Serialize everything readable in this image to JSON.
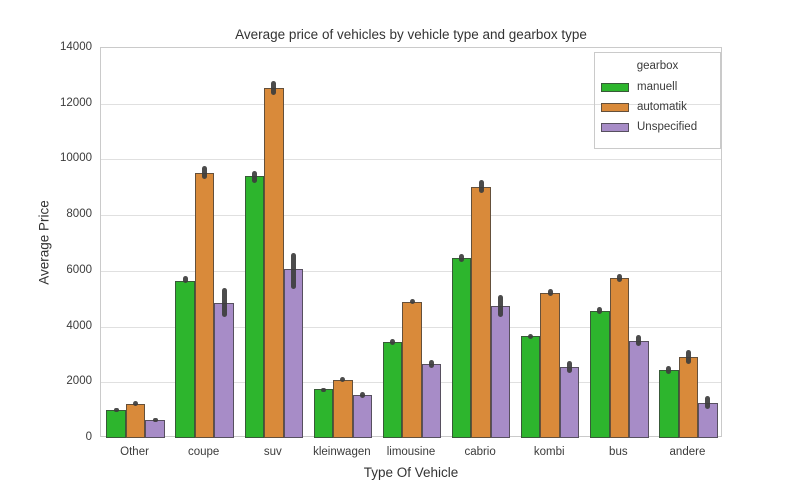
{
  "title": "Average price of vehicles by vehicle type and gearbox type",
  "xlabel": "Type Of Vehicle",
  "ylabel": "Average Price",
  "legend": {
    "title": "gearbox",
    "items": [
      {
        "label": "manuell",
        "color": "#2db52d"
      },
      {
        "label": "automatik",
        "color": "#d98a3a"
      },
      {
        "label": "Unspecified",
        "color": "#a78cc7"
      }
    ]
  },
  "colors": {
    "manuell": "#2db52d",
    "automatik": "#d98a3a",
    "unspecified": "#a78cc7",
    "errorbar": "#3d3d3d",
    "grid": "#e0e0e0",
    "spine": "#cacaca",
    "text": "#333333"
  },
  "y_ticks": [
    0,
    2000,
    4000,
    6000,
    8000,
    10000,
    12000,
    14000
  ],
  "chart_data": {
    "type": "bar",
    "title": "Average price of vehicles by vehicle type and gearbox type",
    "xlabel": "Type Of Vehicle",
    "ylabel": "Average Price",
    "ylim": [
      0,
      14000
    ],
    "grid": true,
    "legend_position": "upper right",
    "legend_title": "gearbox",
    "categories": [
      "Other",
      "coupe",
      "suv",
      "kleinwagen",
      "limousine",
      "cabrio",
      "kombi",
      "bus",
      "andere"
    ],
    "series": [
      {
        "name": "manuell",
        "color": "#2db52d",
        "values": [
          1000,
          5650,
          9400,
          1750,
          3450,
          6450,
          3650,
          4550,
          2450
        ],
        "err_lo": [
          930,
          5550,
          9150,
          1700,
          3350,
          6300,
          3550,
          4450,
          2300
        ],
        "err_hi": [
          1080,
          5800,
          9600,
          1800,
          3550,
          6600,
          3750,
          4700,
          2600
        ]
      },
      {
        "name": "automatik",
        "color": "#d98a3a",
        "values": [
          1225,
          9500,
          12550,
          2100,
          4900,
          9000,
          5200,
          5750,
          2900
        ],
        "err_lo": [
          1140,
          9300,
          12300,
          2000,
          4800,
          8800,
          5100,
          5600,
          2650
        ],
        "err_hi": [
          1320,
          9750,
          12800,
          2200,
          5000,
          9250,
          5350,
          5900,
          3150
        ]
      },
      {
        "name": "Unspecified",
        "color": "#a78cc7",
        "values": [
          650,
          4850,
          6050,
          1550,
          2650,
          4750,
          2550,
          3500,
          1250
        ],
        "err_lo": [
          590,
          4350,
          5350,
          1450,
          2500,
          4350,
          2350,
          3300,
          1050
        ],
        "err_hi": [
          720,
          5400,
          6650,
          1650,
          2800,
          5150,
          2750,
          3700,
          1500
        ]
      }
    ]
  }
}
